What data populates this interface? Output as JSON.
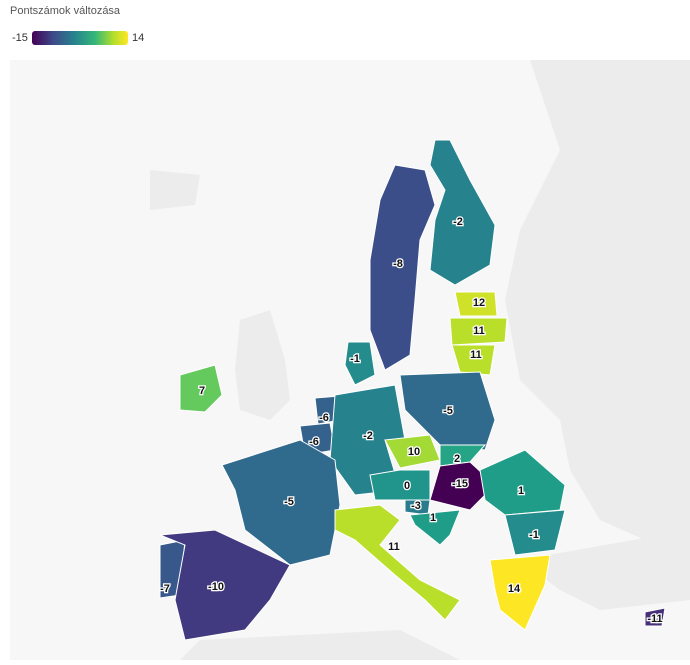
{
  "legend": {
    "title": "Pontszámok változása",
    "min": -15,
    "max": 14
  },
  "values": [
    -2,
    -8,
    12,
    11,
    11,
    -1,
    7,
    -6,
    -6,
    -2,
    -5,
    10,
    2,
    -15,
    0,
    -3,
    1,
    -5,
    11,
    1,
    -1,
    14,
    -7,
    -10,
    -11
  ]
}
